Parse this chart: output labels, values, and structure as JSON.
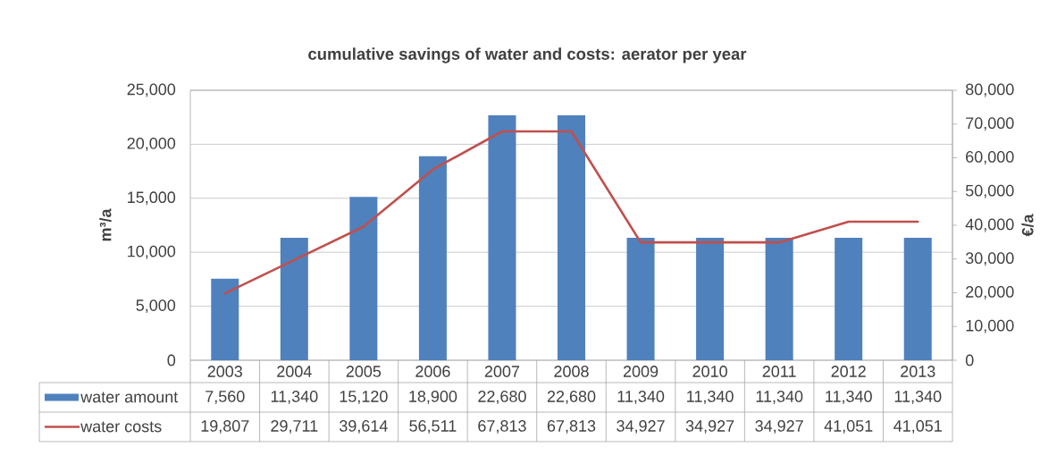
{
  "chart_data": {
    "type": "bar",
    "title": "cumulative savings of water and costs: aerator per year",
    "ylabel": "m³/a",
    "y2label": "€/a",
    "categories": [
      "2003",
      "2004",
      "2005",
      "2006",
      "2007",
      "2008",
      "2009",
      "2010",
      "2011",
      "2012",
      "2013"
    ],
    "series": [
      {
        "name": "water amount",
        "color": "#4f81bd",
        "values": [
          7560,
          11340,
          15120,
          18900,
          22680,
          22680,
          11340,
          11340,
          11340,
          11340,
          11340
        ],
        "value_labels": [
          "7,560",
          "11,340",
          "15,120",
          "18,900",
          "22,680",
          "22,680",
          "11,340",
          "11,340",
          "11,340",
          "11,340",
          "11,340"
        ]
      },
      {
        "name": "water costs",
        "type": "line",
        "axis": "y2",
        "color": "#c0504d",
        "values": [
          19807,
          29711,
          39614,
          56511,
          67813,
          67813,
          34927,
          34927,
          34927,
          41051,
          41051
        ],
        "value_labels": [
          "19,807",
          "29,711",
          "39,614",
          "56,511",
          "67,813",
          "67,813",
          "34,927",
          "34,927",
          "34,927",
          "41,051",
          "41,051"
        ]
      }
    ],
    "ylim": [
      0,
      25000
    ],
    "yticks": [
      0,
      {
        "value": 5000,
        "label": "5,000"
      },
      {
        "value": 10000,
        "label": "10,000"
      },
      {
        "value": 15000,
        "label": "15,000"
      },
      {
        "value": 20000,
        "label": "20,000"
      },
      {
        "value": 25000,
        "label": "25,000"
      }
    ],
    "y2lim": [
      0,
      80000
    ],
    "y2ticks": [
      0,
      {
        "value": 10000,
        "label": "10,000"
      },
      {
        "value": 20000,
        "label": "20,000"
      },
      {
        "value": 30000,
        "label": "30,000"
      },
      {
        "value": 40000,
        "label": "40,000"
      },
      {
        "value": 50000,
        "label": "50,000"
      },
      {
        "value": 60000,
        "label": "60,000"
      },
      {
        "value": 70000,
        "label": "70,000"
      },
      {
        "value": 80000,
        "label": "80,000"
      }
    ],
    "grid": "y",
    "legend": "bottom"
  }
}
